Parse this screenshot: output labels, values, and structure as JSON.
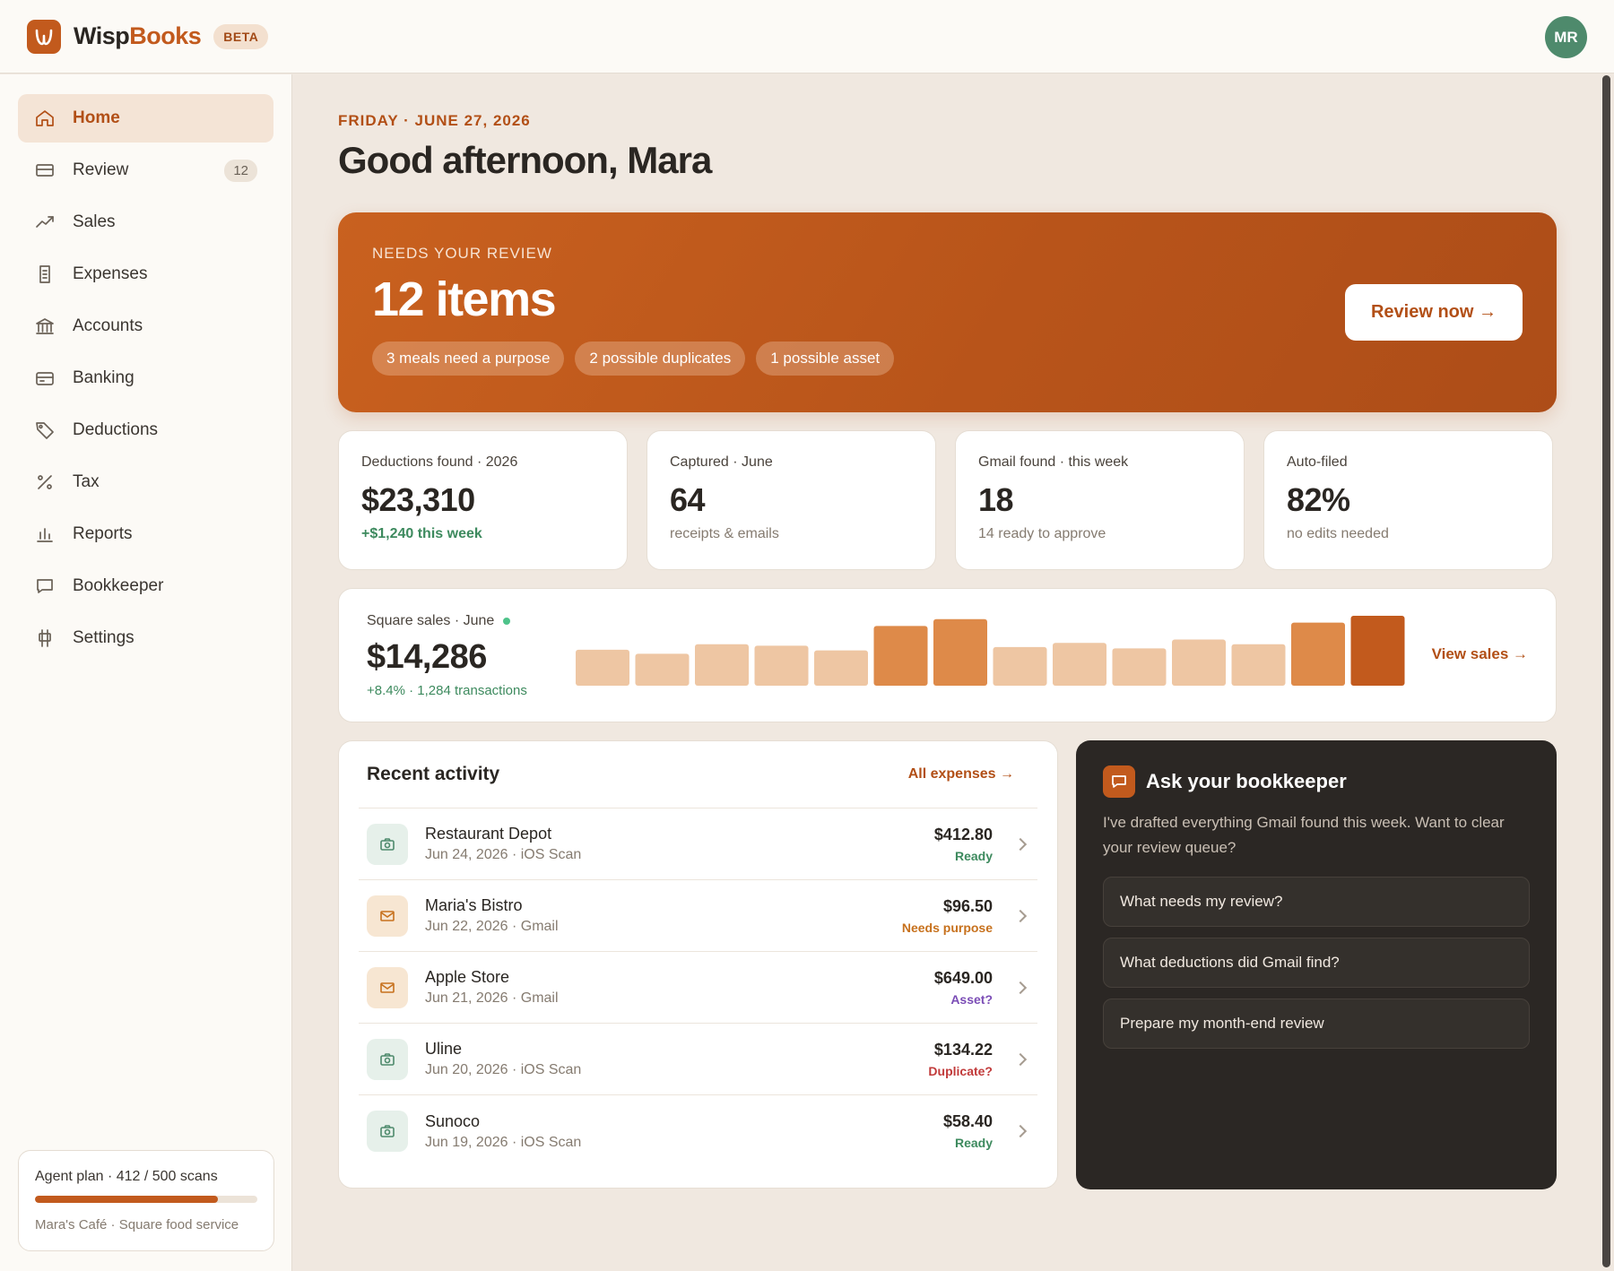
{
  "app": {
    "brand_part1": "Wisp",
    "brand_part2": "Books",
    "badge": "BETA",
    "user_initials": "MR"
  },
  "colors": {
    "accent": "#c25a1d",
    "positive": "#3d8a5e",
    "dark_panel": "#2b2724",
    "avatar": "#4e8a6c"
  },
  "sidebar": {
    "items": [
      {
        "label": "Home",
        "icon": "home-icon",
        "active": true
      },
      {
        "label": "Review",
        "icon": "inbox-icon",
        "badge": "12"
      },
      {
        "label": "Sales",
        "icon": "trend-up-icon"
      },
      {
        "label": "Expenses",
        "icon": "receipt-icon"
      },
      {
        "label": "Accounts",
        "icon": "bank-icon"
      },
      {
        "label": "Banking",
        "icon": "card-icon"
      },
      {
        "label": "Deductions",
        "icon": "tag-icon"
      },
      {
        "label": "Tax",
        "icon": "percent-icon"
      },
      {
        "label": "Reports",
        "icon": "bar-chart-icon"
      },
      {
        "label": "Bookkeeper",
        "icon": "chat-icon"
      },
      {
        "label": "Settings",
        "icon": "sliders-icon"
      }
    ],
    "plan": {
      "title": "Agent plan · 412 / 500 scans",
      "used": 412,
      "limit": 500,
      "subtitle": "Mara's Café · Square food service"
    }
  },
  "header": {
    "date": "FRIDAY · JUNE 27, 2026",
    "greeting": "Good afternoon, Mara"
  },
  "hero": {
    "kicker": "NEEDS YOUR REVIEW",
    "count": "12 items",
    "chips": [
      "3 meals need a purpose",
      "2 possible duplicates",
      "1 possible asset"
    ],
    "button": "Review now →"
  },
  "stats": [
    {
      "label": "Deductions found · 2026",
      "value": "$23,310",
      "sub": "+$1,240 this week",
      "positive": true
    },
    {
      "label": "Captured · June",
      "value": "64",
      "sub": "receipts & emails",
      "positive": false
    },
    {
      "label": "Gmail found · this week",
      "value": "18",
      "sub": "14 ready to approve",
      "positive": false
    },
    {
      "label": "Auto-filed",
      "value": "82%",
      "sub": "no edits needed",
      "positive": false
    }
  ],
  "sales": {
    "label": "Square sales · June",
    "value": "$14,286",
    "sub": "+8.4% · 1,284 transactions",
    "link": "View sales →",
    "bars": [
      53,
      47,
      61,
      59,
      52,
      88,
      98,
      57,
      63,
      55,
      68,
      61,
      93,
      103
    ],
    "bar_levels": [
      "light",
      "light",
      "light",
      "light",
      "light",
      "mid",
      "mid",
      "light",
      "light",
      "light",
      "light",
      "light",
      "mid",
      "dark"
    ]
  },
  "activity": {
    "title": "Recent activity",
    "link": "All expenses →",
    "rows": [
      {
        "name": "Restaurant Depot",
        "meta": "Jun 24, 2026 · iOS Scan",
        "amount": "$412.80",
        "status": "Ready",
        "kind": "scan",
        "status_class": "st-ready"
      },
      {
        "name": "Maria's Bistro",
        "meta": "Jun 22, 2026 · Gmail",
        "amount": "$96.50",
        "status": "Needs purpose",
        "kind": "mail",
        "status_class": "st-purpose"
      },
      {
        "name": "Apple Store",
        "meta": "Jun 21, 2026 · Gmail",
        "amount": "$649.00",
        "status": "Asset?",
        "kind": "mail",
        "status_class": "st-asset"
      },
      {
        "name": "Uline",
        "meta": "Jun 20, 2026 · iOS Scan",
        "amount": "$134.22",
        "status": "Duplicate?",
        "kind": "scan",
        "status_class": "st-dup"
      },
      {
        "name": "Sunoco",
        "meta": "Jun 19, 2026 · iOS Scan",
        "amount": "$58.40",
        "status": "Ready",
        "kind": "scan",
        "status_class": "st-ready"
      }
    ]
  },
  "ask": {
    "title": "Ask your bookkeeper",
    "body": "I've drafted everything Gmail found this week. Want to clear your review queue?",
    "options": [
      "What needs my review?",
      "What deductions did Gmail find?",
      "Prepare my month-end review"
    ]
  }
}
